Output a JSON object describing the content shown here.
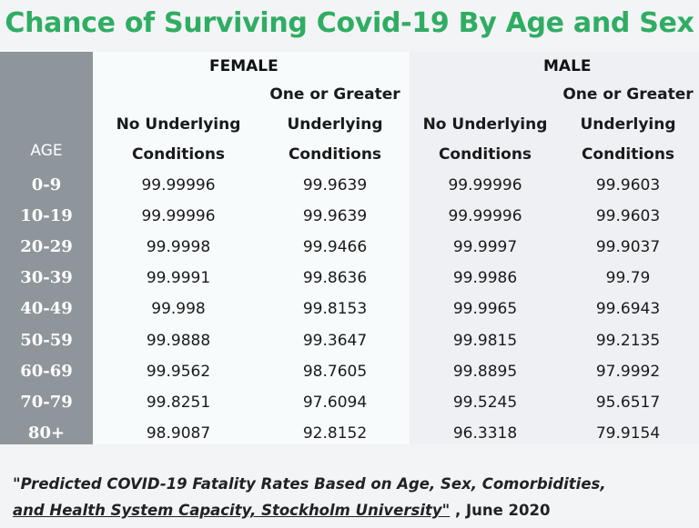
{
  "chart_data": {
    "type": "table",
    "title": "Chance of Surviving Covid-19 By Age and Sex",
    "groups": [
      "FEMALE",
      "MALE"
    ],
    "row_header": "AGE",
    "columns": [
      {
        "group": "FEMALE",
        "lines": [
          "No Underlying",
          "Conditions"
        ]
      },
      {
        "group": "FEMALE",
        "lines": [
          "One or Greater",
          "Underlying",
          "Conditions"
        ]
      },
      {
        "group": "MALE",
        "lines": [
          "No Underlying",
          "Conditions"
        ]
      },
      {
        "group": "MALE",
        "lines": [
          "One or Greater",
          "Underlying",
          "Conditions"
        ]
      }
    ],
    "rows": [
      {
        "age": "0-9",
        "values": [
          "99.99996",
          "99.9639",
          "99.99996",
          "99.9603"
        ]
      },
      {
        "age": "10-19",
        "values": [
          "99.99996",
          "99.9639",
          "99.99996",
          "99.9603"
        ]
      },
      {
        "age": "20-29",
        "values": [
          "99.9998",
          "99.9466",
          "99.9997",
          "99.9037"
        ]
      },
      {
        "age": "30-39",
        "values": [
          "99.9991",
          "99.8636",
          "99.9986",
          "99.79"
        ]
      },
      {
        "age": "40-49",
        "values": [
          "99.998",
          "99.8153",
          "99.9965",
          "99.6943"
        ]
      },
      {
        "age": "50-59",
        "values": [
          "99.9888",
          "99.3647",
          "99.9815",
          "99.2135"
        ]
      },
      {
        "age": "60-69",
        "values": [
          "99.9562",
          "98.7605",
          "99.8895",
          "97.9992"
        ]
      },
      {
        "age": "70-79",
        "values": [
          "99.8251",
          "97.6094",
          "99.5245",
          "95.6517"
        ]
      },
      {
        "age": "80+",
        "values": [
          "98.9087",
          "92.8152",
          "96.3318",
          "79.9154"
        ]
      }
    ]
  },
  "caption": {
    "line1": "\"Predicted COVID-19 Fatality Rates Based on Age, Sex, Comorbidities,",
    "line2_italic": "and Health System Capacity,  Stockholm University\"",
    "line2_rest": " , June 2020"
  },
  "colors": {
    "title": "#2fad63",
    "age_column": "#8e969c",
    "female_bg": "#f7fbfb",
    "male_bg": "#eef0f3"
  }
}
